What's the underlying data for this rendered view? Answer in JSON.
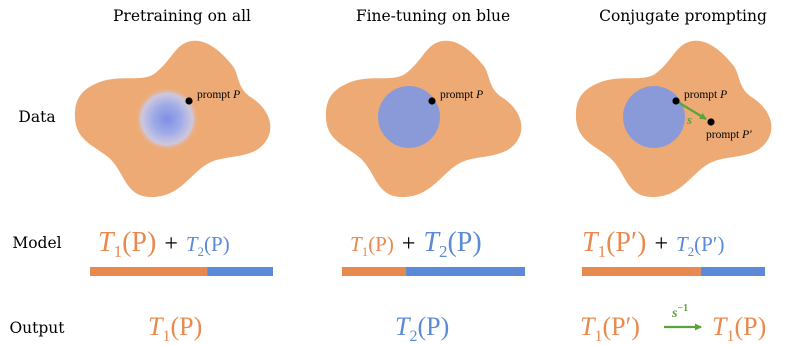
{
  "colors": {
    "orange": "#e88a4f",
    "blob": "#eeaa74",
    "blue": "#5b8ad8",
    "circle": "#8a9ad8",
    "green": "#5aa43a",
    "text": "#000000"
  },
  "columns": [
    {
      "header": "Pretraining on all"
    },
    {
      "header": "Fine-tuning on blue"
    },
    {
      "header": "Conjugate prompting"
    }
  ],
  "rows": {
    "data": "Data",
    "model": "Model",
    "output": "Output"
  },
  "prompt": {
    "label_p": "prompt ",
    "var_p": "P",
    "var_p_prime": "P′",
    "shift": "s"
  },
  "model": {
    "t1_base": "T",
    "t1_sub": "1",
    "t2_base": "T",
    "t2_sub": "2",
    "arg_p": "(P)",
    "arg_p_prime": "(P′)",
    "plus": "+",
    "bars": [
      {
        "orange_fraction": 0.64,
        "blue_fraction": 0.36
      },
      {
        "orange_fraction": 0.35,
        "blue_fraction": 0.65
      },
      {
        "orange_fraction": 0.65,
        "blue_fraction": 0.35
      }
    ]
  },
  "output": {
    "s_inverse_base": "s",
    "s_inverse_exp": "−1"
  }
}
